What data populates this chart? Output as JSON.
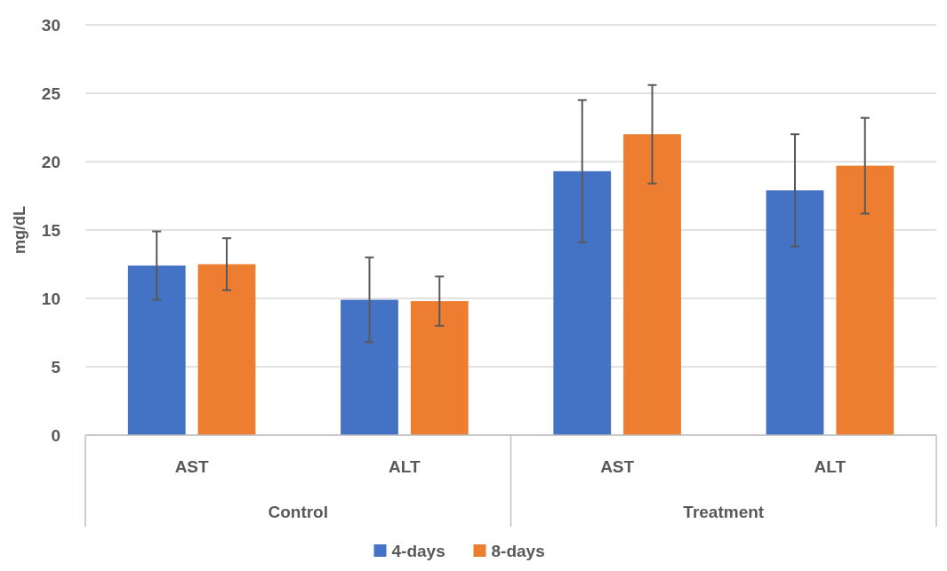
{
  "chart_data": {
    "type": "bar",
    "ylabel": "mg/dL",
    "categories": [
      "AST",
      "ALT",
      "AST",
      "ALT"
    ],
    "annotations": [
      "Control",
      "Treatment"
    ],
    "series": [
      {
        "name": "4-days",
        "color": "#4472c4",
        "values": [
          12.4,
          9.9,
          19.3,
          17.9
        ],
        "errors": [
          2.5,
          3.1,
          5.2,
          4.1
        ]
      },
      {
        "name": "8-days",
        "color": "#ed7d31",
        "values": [
          12.5,
          9.8,
          22.0,
          19.7
        ],
        "errors": [
          1.9,
          1.8,
          3.6,
          3.5
        ]
      }
    ],
    "ylim": [
      0,
      30
    ],
    "yticks": [
      0,
      5,
      10,
      15,
      20,
      25,
      30
    ],
    "grid": "y",
    "legend": "bottom"
  }
}
